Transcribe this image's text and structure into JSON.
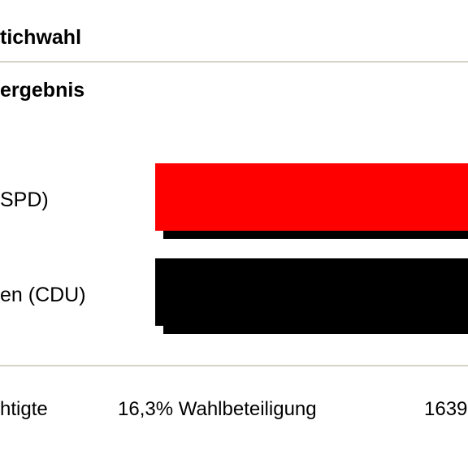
{
  "header": {
    "title": "tichwahl"
  },
  "section": {
    "title": "ergebnis"
  },
  "chart_data": {
    "type": "bar",
    "orientation": "horizontal",
    "categories": [
      "SPD)",
      "en (CDU)"
    ],
    "series": [
      {
        "values": [
          null,
          null
        ],
        "colors": [
          "#ff0000",
          "#000000"
        ]
      }
    ],
    "shadow_color": "#000000",
    "title": "",
    "xlabel": "",
    "ylabel": "",
    "grid": false,
    "legend": "none"
  },
  "footer": {
    "eligible_label": "htigte",
    "turnout_label": "16,3% Wahlbeteiligung",
    "votes_label": "1639"
  },
  "colors": {
    "rule": "#d9d3c7",
    "spd": "#ff0000",
    "cdu": "#000000"
  }
}
